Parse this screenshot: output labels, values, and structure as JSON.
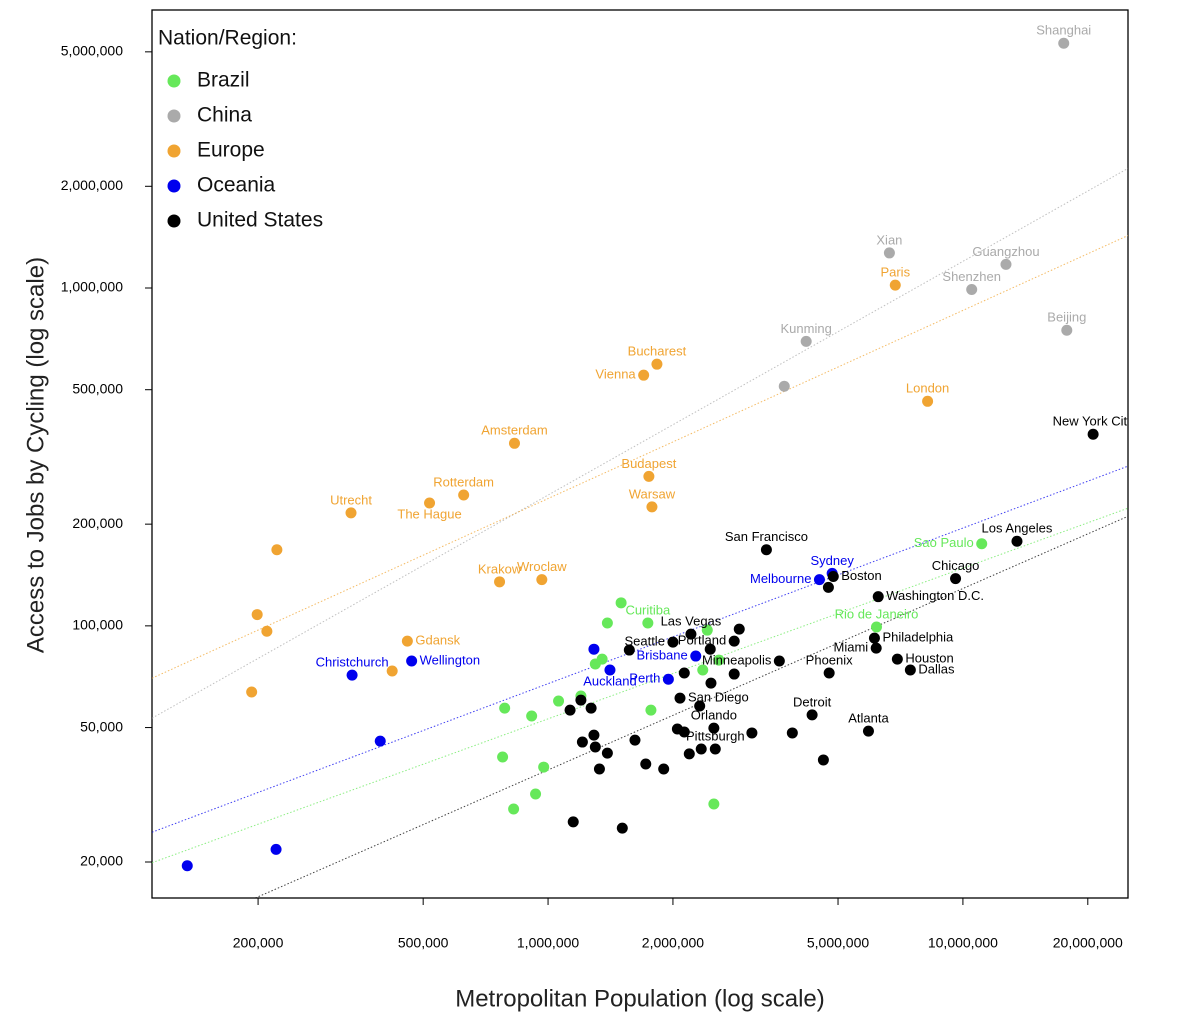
{
  "chart_data": {
    "type": "scatter",
    "x_label": "Metropolitan Population (log scale)",
    "y_label": "Access to Jobs by Cycling (log scale)",
    "legend_title": "Nation/Region:",
    "legend": "top-left",
    "xscale": "log",
    "yscale": "log",
    "grid": false,
    "xlim": [
      111000,
      25000000
    ],
    "ylim": [
      15650,
      6650000
    ],
    "xticks": [
      {
        "value": 200000,
        "label": "200,000"
      },
      {
        "value": 500000,
        "label": "500,000"
      },
      {
        "value": 1000000,
        "label": "1,000,000"
      },
      {
        "value": 2000000,
        "label": "2,000,000"
      },
      {
        "value": 5000000,
        "label": "5,000,000"
      },
      {
        "value": 10000000,
        "label": "10,000,000"
      },
      {
        "value": 20000000,
        "label": "20,000,000"
      }
    ],
    "yticks": [
      {
        "value": 20000,
        "label": "20,000"
      },
      {
        "value": 50000,
        "label": "50,000"
      },
      {
        "value": 100000,
        "label": "100,000"
      },
      {
        "value": 200000,
        "label": "200,000"
      },
      {
        "value": 500000,
        "label": "500,000"
      },
      {
        "value": 1000000,
        "label": "1,000,000"
      },
      {
        "value": 2000000,
        "label": "2,000,000"
      },
      {
        "value": 5000000,
        "label": "5,000,000"
      }
    ],
    "series": [
      {
        "name": "Brazil",
        "color": "#66e85a",
        "x": [
          11100000,
          6190000,
          1740000,
          1500000,
          1390000,
          2420000,
          1350000,
          1300000,
          2580000,
          2360000,
          1200000,
          1060000,
          786000,
          913000,
          1770000,
          777000,
          976000,
          933000,
          826000,
          2510000
        ],
        "values": [
          175000,
          99200,
          102000,
          117000,
          102000,
          97100,
          79700,
          77100,
          79200,
          74000,
          62000,
          59900,
          57100,
          54100,
          56300,
          40900,
          38200,
          31800,
          28700,
          29700
        ],
        "labels": [
          "Sao Paulo",
          "Rio de Janeiro",
          "Curitiba",
          null,
          null,
          null,
          null,
          null,
          null,
          null,
          null,
          null,
          null,
          null,
          null,
          null,
          null,
          null,
          null,
          null
        ],
        "trend": {
          "x": [
            111000,
            25000000
          ],
          "y": [
            19900,
            223000
          ]
        }
      },
      {
        "name": "China",
        "color": "#aaaaaa",
        "x": [
          17500000,
          6650000,
          12700000,
          10500000,
          17800000,
          4190000,
          3710000
        ],
        "values": [
          5300000,
          1270000,
          1175000,
          990000,
          750000,
          695000,
          512000
        ],
        "labels": [
          "Shanghai",
          "Xian",
          "Guangzhou",
          "Shenzhen",
          "Beijing",
          "Kunming",
          null
        ],
        "trend": {
          "x": [
            111000,
            25000000
          ],
          "y": [
            53300,
            2260000
          ]
        }
      },
      {
        "name": "Europe",
        "color": "#f0a432",
        "x": [
          6870000,
          1830000,
          1700000,
          8220000,
          830000,
          1750000,
          626000,
          518000,
          1780000,
          335000,
          222000,
          764000,
          966000,
          199000,
          210000,
          458000,
          421000,
          193000
        ],
        "values": [
          1020000,
          595000,
          552000,
          462000,
          347000,
          277000,
          244000,
          231000,
          225000,
          216000,
          168000,
          135000,
          137000,
          108000,
          96400,
          90100,
          73500,
          63700
        ],
        "labels": [
          "Paris",
          "Bucharest",
          "Vienna",
          "London",
          "Amsterdam",
          "Budapest",
          "Rotterdam",
          "The Hague",
          "Warsaw",
          "Utrecht",
          null,
          "Krakow",
          "Wroclaw",
          null,
          null,
          "Gdansk",
          null,
          null
        ],
        "trend": {
          "x": [
            111000,
            25000000
          ],
          "y": [
            70000,
            1430000
          ]
        }
      },
      {
        "name": "Oceania",
        "color": "#0000ee",
        "x": [
          4840000,
          4510000,
          2270000,
          1290000,
          337000,
          469000,
          1410000,
          1950000,
          394000,
          221000,
          135000
        ],
        "values": [
          143000,
          137000,
          81400,
          85300,
          71500,
          78700,
          74000,
          69500,
          45600,
          21800,
          19500
        ],
        "labels": [
          "Sydney",
          "Melbourne",
          "Brisbane",
          null,
          "Christchurch",
          "Wellington",
          "Auckland",
          "Perth",
          null,
          null,
          null
        ],
        "trend": {
          "x": [
            111000,
            25000000
          ],
          "y": [
            24500,
            297000
          ]
        }
      },
      {
        "name": "United States",
        "color": "#000000",
        "x": [
          20600000,
          13500000,
          3360000,
          9600000,
          4870000,
          6250000,
          2210000,
          2810000,
          6120000,
          2000000,
          6180000,
          3610000,
          6950000,
          7470000,
          4760000,
          2080000,
          4330000,
          2510000,
          5920000,
          2530000,
          4740000,
          2890000,
          1570000,
          2460000,
          2130000,
          2810000,
          2470000,
          2320000,
          1130000,
          1270000,
          1200000,
          2050000,
          2130000,
          3100000,
          3880000,
          1290000,
          1210000,
          1300000,
          1620000,
          1390000,
          2340000,
          2190000,
          1330000,
          1720000,
          1900000,
          4610000,
          1150000,
          1510000
        ],
        "values": [
          369000,
          178000,
          168000,
          138000,
          140000,
          122000,
          94500,
          90100,
          92000,
          89500,
          85900,
          78700,
          79700,
          74000,
          72500,
          61100,
          54500,
          49800,
          48800,
          43200,
          130000,
          97800,
          84800,
          85300,
          72500,
          72000,
          67700,
          57900,
          56300,
          57100,
          60300,
          49500,
          48500,
          48200,
          48200,
          47500,
          45300,
          43800,
          45900,
          42000,
          43200,
          41800,
          37700,
          39000,
          37700,
          40100,
          26300,
          25200
        ],
        "labels": [
          "New York City",
          "Los Angeles",
          "San Francisco",
          "Chicago",
          "Boston",
          "Washington D.C.",
          "Las Vegas",
          "Portland",
          "Philadelphia",
          "Seattle",
          "Miami",
          "Minneapolis",
          "Houston",
          "Dallas",
          "Phoenix",
          "San Diego",
          "Detroit",
          "Orlando",
          "Atlanta",
          "Pittsburgh",
          null,
          null,
          null,
          null,
          null,
          null,
          null,
          null,
          null,
          null,
          null,
          null,
          null,
          null,
          null,
          null,
          null,
          null,
          null,
          null,
          null,
          null,
          null,
          null,
          null,
          null,
          null,
          null
        ],
        "trend": {
          "x": [
            197000,
            25000000
          ],
          "y": [
            15650,
            211000
          ]
        }
      }
    ]
  }
}
